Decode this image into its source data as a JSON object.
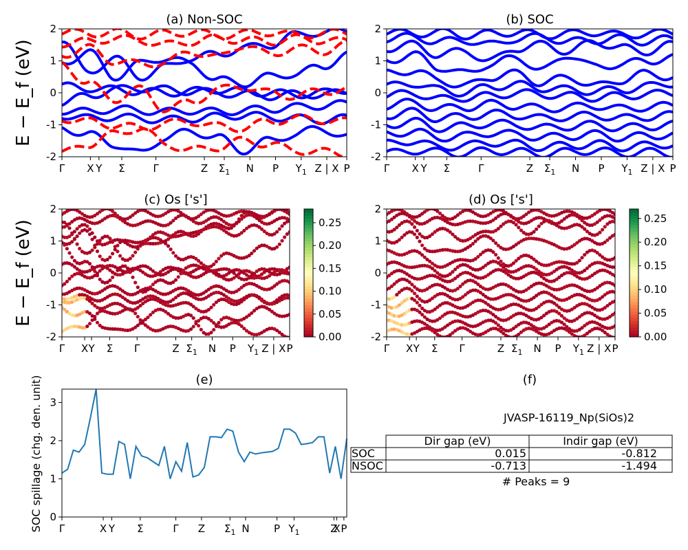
{
  "figure_id": "JVASP-16119_Np(SiOs)2",
  "chart_data": [
    {
      "id": "a",
      "type": "line",
      "title": "(a) Non-SOC",
      "ylabel": "E − E_f (eV)",
      "ylim": [
        -2,
        2
      ],
      "yticks": [
        -2,
        -1,
        0,
        1,
        2
      ],
      "xticks": [
        "Γ",
        "X",
        "Y",
        "Σ",
        "Γ",
        "Z",
        "Σ1",
        "N",
        "P",
        "Y1",
        "Z | X",
        "P"
      ],
      "series": [
        {
          "style": "solid",
          "color": "#0000ff",
          "bands": [
            [
              0.2,
              0.15,
              0.1,
              0.05,
              0.0,
              0.05,
              0.1,
              0.05,
              0.0,
              -0.05,
              0.0,
              0.1
            ],
            [
              -0.3,
              -0.1,
              0.1,
              0.15,
              0.1,
              0.05,
              0.0,
              -0.05,
              -0.1,
              -0.05,
              -0.05,
              0.0
            ],
            [
              -0.55,
              -0.6,
              -0.5,
              -0.55,
              -0.6,
              -0.55,
              -0.6,
              -0.55,
              -0.5,
              -0.45,
              -0.4,
              -0.35
            ],
            [
              -0.7,
              -0.8,
              -0.75,
              -0.8,
              -0.85,
              -0.8,
              -0.75,
              -0.7,
              -0.75,
              -0.8,
              -0.85,
              -0.8
            ],
            [
              0.9,
              1.3,
              0.5,
              0.9,
              1.1,
              0.9,
              0.4,
              0.3,
              0.5,
              0.6,
              0.8,
              1.2
            ],
            [
              -1.1,
              -1.3,
              -1.6,
              -1.9,
              -1.4,
              -1.2,
              -1.4,
              -1.8,
              -1.5,
              -1.3,
              -1.1,
              -1.4
            ],
            [
              1.7,
              0.6,
              1.1,
              0.5,
              0.8,
              1.1,
              1.2,
              1.4,
              1.5,
              1.8,
              1.9,
              1.9
            ]
          ]
        },
        {
          "style": "dashed",
          "color": "#ff0000",
          "bands": [
            [
              1.9,
              1.85,
              1.9,
              1.8,
              1.85,
              1.9,
              1.8,
              1.85,
              1.9,
              1.8,
              1.85,
              1.9
            ],
            [
              1.55,
              1.6,
              1.7,
              1.65,
              1.5,
              1.6,
              1.7,
              1.65,
              1.6,
              1.7,
              1.65,
              1.6
            ],
            [
              1.2,
              1.4,
              1.0,
              0.9,
              0.95,
              1.3,
              1.1,
              1.5,
              1.2,
              1.4,
              1.3,
              1.5
            ],
            [
              -0.8,
              -0.9,
              -1.0,
              -1.1,
              -0.95,
              -0.9,
              -1.05,
              -1.1,
              -0.9,
              -0.8,
              -0.85,
              -0.9
            ],
            [
              -1.9,
              -1.6,
              -1.3,
              -1.1,
              -1.6,
              -1.8,
              -1.7,
              -1.5,
              -1.6,
              -1.8,
              -1.85,
              -1.9
            ],
            [
              0.9,
              0.3,
              -0.2,
              0.1,
              -0.5,
              -0.3,
              0.1,
              0.2,
              0.0,
              -0.1,
              0.05,
              0.1
            ]
          ]
        }
      ]
    },
    {
      "id": "b",
      "type": "line",
      "title": "(b) SOC",
      "ylim": [
        -2,
        2
      ],
      "yticks": [
        -2,
        -1,
        0,
        1,
        2
      ],
      "xticks": [
        "Γ",
        "X",
        "Y",
        "Σ",
        "Γ",
        "Z",
        "Σ1",
        "N",
        "P",
        "Y1",
        "Z | X",
        "P"
      ],
      "series": [
        {
          "style": "solid",
          "color": "#0000ff",
          "bands": [
            [
              1.9,
              1.85,
              1.9,
              1.8,
              1.85,
              1.9,
              1.8,
              1.85,
              1.9,
              1.8,
              1.85,
              1.9
            ],
            [
              1.7,
              1.75,
              1.6,
              1.65,
              1.5,
              1.7,
              1.75,
              1.6,
              1.65,
              1.7,
              1.6,
              1.7
            ],
            [
              1.4,
              1.5,
              1.2,
              1.3,
              1.0,
              1.4,
              1.5,
              1.3,
              1.6,
              1.4,
              1.3,
              1.5
            ],
            [
              1.0,
              1.2,
              0.8,
              0.6,
              0.9,
              1.1,
              0.7,
              1.2,
              0.8,
              0.9,
              1.0,
              1.1
            ],
            [
              0.6,
              0.7,
              0.4,
              0.2,
              0.5,
              0.6,
              0.3,
              0.5,
              0.2,
              0.4,
              0.6,
              0.5
            ],
            [
              0.2,
              0.3,
              0.1,
              0.0,
              0.2,
              0.25,
              0.15,
              0.1,
              0.05,
              0.1,
              0.2,
              0.3
            ],
            [
              -0.1,
              0.0,
              -0.2,
              -0.15,
              -0.1,
              0.0,
              -0.05,
              -0.1,
              -0.15,
              -0.1,
              -0.05,
              0.0
            ],
            [
              -0.4,
              -0.3,
              -0.5,
              -0.45,
              -0.35,
              -0.4,
              -0.5,
              -0.45,
              -0.4,
              -0.5,
              -0.45,
              -0.4
            ],
            [
              -0.7,
              -0.6,
              -0.8,
              -0.75,
              -0.65,
              -0.7,
              -0.8,
              -0.75,
              -0.7,
              -0.8,
              -0.75,
              -0.7
            ],
            [
              -1.0,
              -0.9,
              -1.1,
              -1.05,
              -0.95,
              -1.0,
              -1.1,
              -1.05,
              -1.0,
              -1.1,
              -1.05,
              -1.0
            ],
            [
              -1.3,
              -1.2,
              -1.4,
              -1.35,
              -1.25,
              -1.3,
              -1.4,
              -1.35,
              -1.3,
              -1.4,
              -1.35,
              -1.3
            ],
            [
              -1.6,
              -1.5,
              -1.7,
              -1.65,
              -1.55,
              -1.6,
              -1.7,
              -1.65,
              -1.6,
              -1.7,
              -1.65,
              -1.6
            ],
            [
              -1.9,
              -1.8,
              -1.85,
              -1.9,
              -1.8,
              -1.85,
              -1.9,
              -1.85,
              -1.8,
              -1.9,
              -1.85,
              -1.9
            ]
          ]
        }
      ]
    },
    {
      "id": "c",
      "type": "scatter",
      "title": "(c)  Os ['s']",
      "ylabel": "E − E_f (eV)",
      "ylim": [
        -2,
        2
      ],
      "yticks": [
        -2,
        -1,
        0,
        1,
        2
      ],
      "xticks": [
        "Γ",
        "X",
        "Y",
        "Σ",
        "Γ",
        "Z",
        "Σ1",
        "N",
        "P",
        "Y1",
        "Z | X",
        "P"
      ],
      "colorbar": {
        "ticks": [
          "0.00",
          "0.05",
          "0.10",
          "0.15",
          "0.20",
          "0.25"
        ],
        "range": [
          0,
          0.28
        ],
        "cmap": "RdYlGn"
      }
    },
    {
      "id": "d",
      "type": "scatter",
      "title": "(d) Os ['s']",
      "ylim": [
        -2,
        2
      ],
      "yticks": [
        -2,
        -1,
        0,
        1,
        2
      ],
      "xticks": [
        "Γ",
        "X",
        "Y",
        "Σ",
        "Γ",
        "Z",
        "Σ1",
        "N",
        "P",
        "Y1",
        "Z | X",
        "P"
      ],
      "colorbar": {
        "ticks": [
          "0.00",
          "0.05",
          "0.10",
          "0.15",
          "0.20",
          "0.25"
        ],
        "range": [
          0,
          0.27
        ],
        "cmap": "RdYlGn"
      }
    },
    {
      "id": "e",
      "type": "line",
      "title": "(e)",
      "ylabel": "SOC spillage (chg. den. unit)",
      "ylim": [
        0,
        3.35
      ],
      "yticks": [
        0,
        1,
        2,
        3
      ],
      "xticks": [
        "Γ",
        "X",
        "Y",
        "Σ",
        "Γ",
        "Z",
        "Σ1",
        "N",
        "P",
        "Y1",
        "Z",
        "X",
        "P"
      ],
      "color": "#1f77b4",
      "x": [
        0,
        2,
        4,
        6,
        8,
        10,
        12,
        14,
        16,
        18,
        20,
        22,
        24,
        26,
        28,
        30,
        32,
        34,
        36,
        38,
        40,
        42,
        44,
        46,
        48,
        50,
        52,
        54,
        56,
        58,
        60,
        62,
        64,
        66,
        68,
        70,
        72,
        74,
        76,
        78,
        80,
        82,
        84,
        86,
        88,
        90,
        92,
        94,
        96,
        98,
        100
      ],
      "values": [
        1.15,
        1.25,
        1.75,
        1.7,
        1.9,
        2.6,
        3.35,
        1.15,
        1.12,
        1.12,
        1.98,
        1.9,
        1.0,
        1.85,
        1.6,
        1.55,
        1.45,
        1.35,
        1.85,
        1.0,
        1.45,
        1.2,
        1.95,
        1.05,
        1.1,
        1.3,
        2.1,
        2.1,
        2.08,
        2.3,
        2.25,
        1.7,
        1.45,
        1.7,
        1.65,
        1.68,
        1.7,
        1.72,
        1.8,
        2.3,
        2.3,
        2.2,
        1.9,
        1.92,
        1.95,
        2.1,
        2.1,
        1.15,
        1.85,
        1.0,
        2.05
      ]
    }
  ],
  "panel_f": {
    "title": "(f)",
    "material": "JVASP-16119_Np(SiOs)2",
    "table": {
      "columns": [
        "Dir gap (eV)",
        "Indir gap (eV)"
      ],
      "rows": [
        {
          "label": "SOC",
          "dir": "0.015",
          "indir": "-0.812"
        },
        {
          "label": "NSOC",
          "dir": "-0.713",
          "indir": "-1.494"
        }
      ]
    },
    "peaks": "# Peaks = 9"
  }
}
